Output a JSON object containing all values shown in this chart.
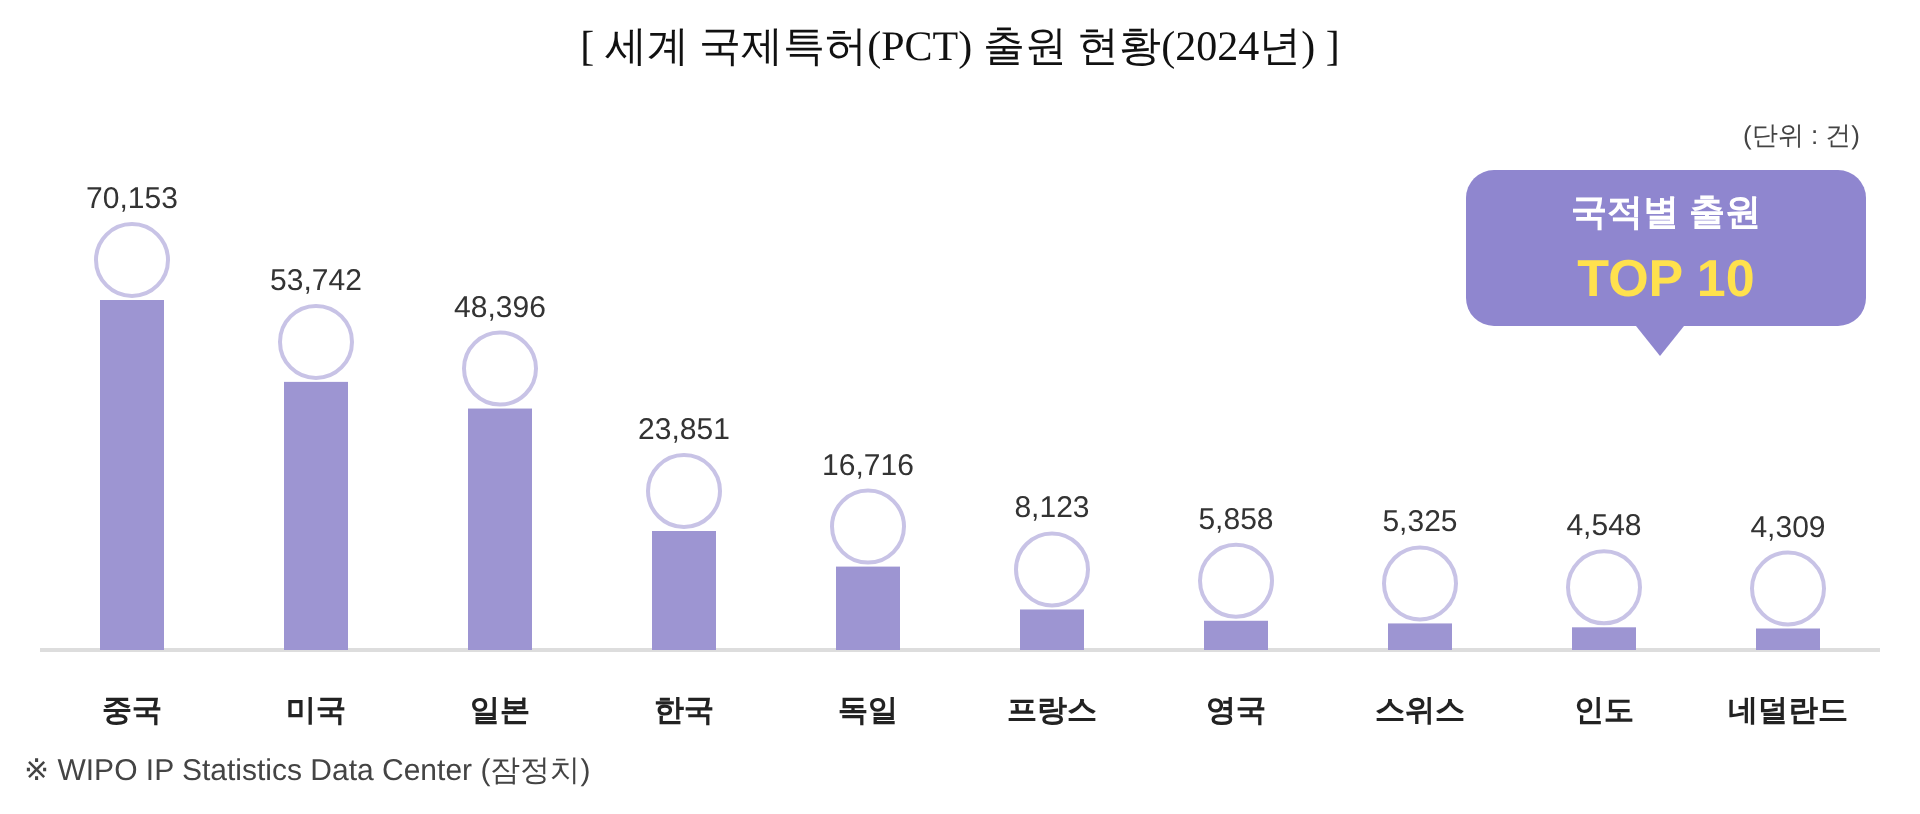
{
  "chart_data": {
    "type": "bar",
    "title": "[ 세계 국제특허(PCT) 출원 현황(2024년) ]",
    "categories": [
      "중국",
      "미국",
      "일본",
      "한국",
      "독일",
      "프랑스",
      "영국",
      "스위스",
      "인도",
      "네덜란드"
    ],
    "values": [
      70153,
      53742,
      48396,
      23851,
      16716,
      8123,
      5858,
      5325,
      4548,
      4309
    ],
    "color": "#9d95d2",
    "value_labels": [
      "70,153",
      "53,742",
      "48,396",
      "23,851",
      "16,716",
      "8,123",
      "5,858",
      "5,325",
      "4,548",
      "4,309"
    ],
    "annotations": [
      "(단위 : 건)",
      "국적별 출원",
      "TOP 10",
      "※ WIPO IP Statistics Data Center (잠정치)"
    ]
  }
}
